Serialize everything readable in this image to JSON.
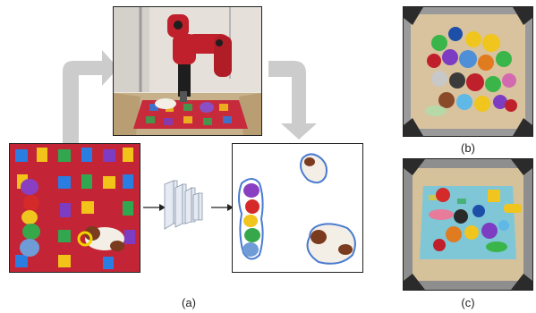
{
  "figure": {
    "labels": {
      "a": "(a)",
      "b": "(b)",
      "c": "(c)"
    },
    "colors": {
      "flow_arrow": "#c8c8c8",
      "mask_outline": "#4a7bd1",
      "grasp_marker": "#f2d400",
      "network_block": "#e6eaf2"
    },
    "elements": {
      "robot_photo": "robot-arm-over-patterned-bin",
      "input_image": "overhead-image-with-grasp-marker",
      "network": "convolutional-network-blocks",
      "output_image": "segmented-objects-on-white",
      "clutter_photo_b": "bin-of-plush-toys",
      "clutter_photo_c": "bin-of-assorted-toys"
    }
  }
}
